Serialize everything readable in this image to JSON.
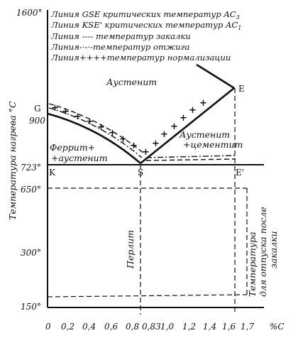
{
  "legend": [
    {
      "pre": "Линия GSE критических температур AC",
      "sub": "3"
    },
    {
      "pre": "Линия KSE' критических температур AC",
      "sub": "1"
    },
    {
      "pre": "Линия ---- температур закалки",
      "sub": ""
    },
    {
      "pre": "Линия-·-·-температур отжига",
      "sub": ""
    },
    {
      "pre": "Линия++++температур нормализации",
      "sub": ""
    }
  ],
  "y_axis": {
    "label": "Температура нагрева °С",
    "ticks": [
      "1600°",
      "900",
      "723°",
      "650°",
      "300°",
      "150°"
    ]
  },
  "x_axis": {
    "unit": "%С",
    "ticks": [
      "0",
      "0,2",
      "0,4",
      "0,6",
      "0,8",
      "0,83",
      "1,0",
      "1,2",
      "1,4",
      "1,6",
      "1,7"
    ]
  },
  "regions": {
    "austenite": "Аустенит",
    "austenite_cementite_1": "Аустенит",
    "austenite_cementite_2": "+цементит",
    "ferrite_austenite_1": "Феррит+",
    "ferrite_austenite_2": "+аустенит",
    "pearlite": "Перлит",
    "tempering_1": "Температура",
    "tempering_2": "для отпуска после",
    "tempering_3": "закалки"
  },
  "points": {
    "G": "G",
    "S": "S",
    "E": "E",
    "K": "K",
    "E_prime": "E'"
  }
}
